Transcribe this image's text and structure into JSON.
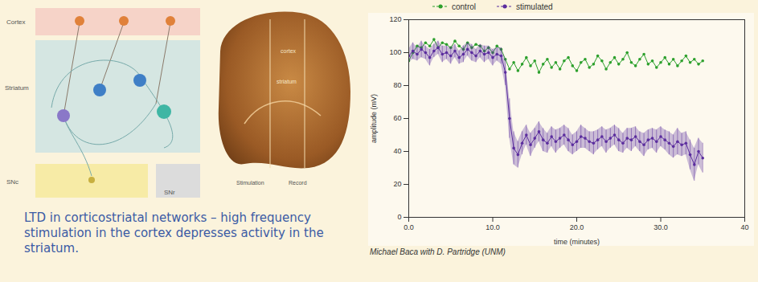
{
  "chart_data": {
    "type": "line",
    "xlabel": "time (minutes)",
    "ylabel": "amplitude (mV)",
    "xlim": [
      0,
      40
    ],
    "ylim": [
      0,
      120
    ],
    "xticks": [
      {
        "value": 0,
        "label": "0.0"
      },
      {
        "value": 10,
        "label": "10.0"
      },
      {
        "value": 20,
        "label": "20.0"
      },
      {
        "value": 30,
        "label": "30.0"
      },
      40
    ],
    "yticks": [
      0,
      20,
      40,
      60,
      80,
      100,
      120
    ],
    "grid": false,
    "legend": "top",
    "x": [
      0,
      0.5,
      1,
      1.5,
      2,
      2.5,
      3,
      3.5,
      4,
      4.5,
      5,
      5.5,
      6,
      6.5,
      7,
      7.5,
      8,
      8.5,
      9,
      9.5,
      10,
      10.5,
      11,
      11.5,
      12,
      12.5,
      13,
      13.5,
      14,
      14.5,
      15,
      15.5,
      16,
      16.5,
      17,
      17.5,
      18,
      18.5,
      19,
      19.5,
      20,
      20.5,
      21,
      21.5,
      22,
      22.5,
      23,
      23.5,
      24,
      24.5,
      25,
      25.5,
      26,
      26.5,
      27,
      27.5,
      28,
      28.5,
      29,
      29.5,
      30,
      30.5,
      31,
      31.5,
      32,
      32.5,
      33,
      33.5,
      34,
      34.5,
      35
    ],
    "series": [
      {
        "name": "control",
        "color": "#2ca02c",
        "marker": "circle",
        "values": [
          95,
          100,
          104,
          103,
          106,
          104,
          108,
          103,
          106,
          105,
          103,
          107,
          104,
          102,
          106,
          103,
          105,
          104,
          101,
          103,
          100,
          104,
          102,
          96,
          90,
          94,
          89,
          93,
          97,
          92,
          95,
          88,
          93,
          96,
          91,
          94,
          90,
          95,
          97,
          92,
          89,
          94,
          96,
          91,
          93,
          98,
          95,
          90,
          94,
          97,
          93,
          96,
          100,
          94,
          92,
          96,
          99,
          93,
          95,
          91,
          94,
          97,
          93,
          96,
          92,
          95,
          98,
          94,
          96,
          93,
          95
        ]
      },
      {
        "name": "stimulated",
        "color": "#5b2d9e",
        "marker": "circle",
        "values": [
          98,
          101,
          99,
          102,
          100,
          97,
          101,
          103,
          99,
          100,
          98,
          101,
          97,
          99,
          102,
          100,
          98,
          101,
          99,
          100,
          97,
          99,
          98,
          88,
          60,
          42,
          38,
          45,
          50,
          44,
          48,
          52,
          47,
          45,
          49,
          46,
          48,
          50,
          47,
          44,
          46,
          49,
          48,
          46,
          45,
          47,
          49,
          46,
          48,
          50,
          47,
          45,
          48,
          47,
          49,
          46,
          44,
          47,
          48,
          46,
          49,
          47,
          45,
          43,
          46,
          44,
          45,
          38,
          32,
          40,
          36
        ],
        "errors": [
          4,
          5,
          4,
          5,
          4,
          5,
          4,
          4,
          5,
          4,
          5,
          4,
          4,
          5,
          4,
          5,
          4,
          4,
          5,
          4,
          5,
          4,
          5,
          8,
          12,
          10,
          8,
          7,
          6,
          7,
          6,
          6,
          7,
          6,
          6,
          7,
          6,
          6,
          7,
          6,
          6,
          7,
          6,
          6,
          7,
          6,
          6,
          7,
          6,
          6,
          7,
          6,
          6,
          7,
          6,
          6,
          7,
          6,
          6,
          7,
          6,
          6,
          7,
          7,
          8,
          7,
          7,
          9,
          10,
          8,
          9
        ]
      }
    ]
  },
  "diagram": {
    "layers": [
      "Cortex",
      "Striatum",
      "SNc",
      "SNr"
    ],
    "slice_labels": [
      "cortex",
      "striatum",
      "Stimulation",
      "Record"
    ]
  },
  "caption": "LTD in corticostriatal networks – high frequency stimulation in the cortex depresses activity in the striatum.",
  "credit": "Michael Baca with D. Partridge (UNM)"
}
